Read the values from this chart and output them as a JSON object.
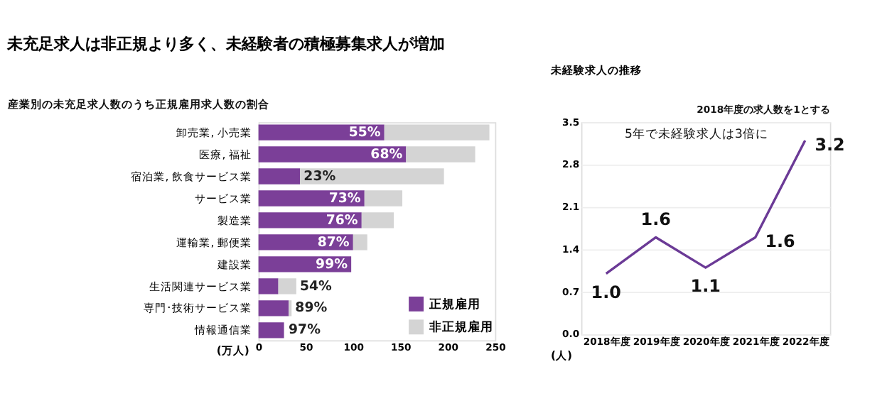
{
  "chart_data": [
    {
      "type": "bar",
      "title": "未充足求人は非正規より多く、未経験者の積極募集求人が増加",
      "subtitle": "産業別の未充足求人数のうち正規雇用求人数の割合",
      "orientation": "horizontal",
      "stacked": true,
      "xlabel": "(万人)",
      "categories": [
        "卸売業, 小売業",
        "医療, 福祉",
        "宿泊業, 飲食サービス業",
        "サービス業",
        "製造業",
        "運輸業, 郵便業",
        "建設業",
        "生活関連サービス業",
        "専門･技術サービス業",
        "情報通信業"
      ],
      "series": [
        {
          "name": "正規雇用",
          "color": "#7b3f98",
          "values": [
            133,
            156,
            44,
            112,
            109,
            100,
            98,
            21,
            32,
            27
          ]
        },
        {
          "name": "非正規雇用",
          "color": "#d4d4d4",
          "values": [
            111,
            73,
            152,
            40,
            34,
            15,
            null,
            19,
            3,
            null
          ]
        }
      ],
      "annotations": [
        {
          "text": "55%",
          "x": 133,
          "y": "卸売業, 小売業"
        },
        {
          "text": "68%",
          "x": 156,
          "y": "医療, 福祉"
        },
        {
          "text": "23%",
          "x": 44,
          "y": "宿泊業, 飲食サービス業"
        },
        {
          "text": "73%",
          "x": 112,
          "y": "サービス業"
        },
        {
          "text": "76%",
          "x": 109,
          "y": "製造業"
        },
        {
          "text": "87%",
          "x": 100,
          "y": "運輸業, 郵便業"
        },
        {
          "text": "99%",
          "x": 98,
          "y": "建設業"
        },
        {
          "text": "54%",
          "x": 40,
          "y": "生活関連サービス業"
        },
        {
          "text": "89%",
          "x": 35,
          "y": "専門･技術サービス業"
        },
        {
          "text": "97%",
          "x": 28,
          "y": "情報通信業"
        }
      ],
      "xlim": [
        0,
        250
      ],
      "xticks": [
        0,
        50,
        100,
        150,
        200,
        250
      ],
      "grid": false,
      "legend": "bottom right"
    },
    {
      "type": "line",
      "subtitle": "未経験求人の推移",
      "ylabel": "(人)",
      "annotations": [
        "2018年度の求人数を1とする",
        "5年で未経験求人は3倍に"
      ],
      "categories": [
        "2018年度",
        "2019年度",
        "2020年度",
        "2021年度",
        "2022年度"
      ],
      "series": [
        {
          "color": "#6b3a96",
          "values": [
            1.0,
            1.6,
            1.1,
            1.6,
            3.2
          ],
          "value_labels": [
            "1.0",
            "1.6",
            "1.1",
            "1.6",
            "3.2"
          ]
        }
      ],
      "ylim": [
        0,
        3.5
      ],
      "yticks": [
        {
          "value": 0,
          "label": "0.0"
        },
        0.7,
        1.4,
        2.1,
        2.8,
        3.5
      ],
      "grid": "y",
      "data_labels": true,
      "marker": "none",
      "line_style": "solid"
    }
  ]
}
